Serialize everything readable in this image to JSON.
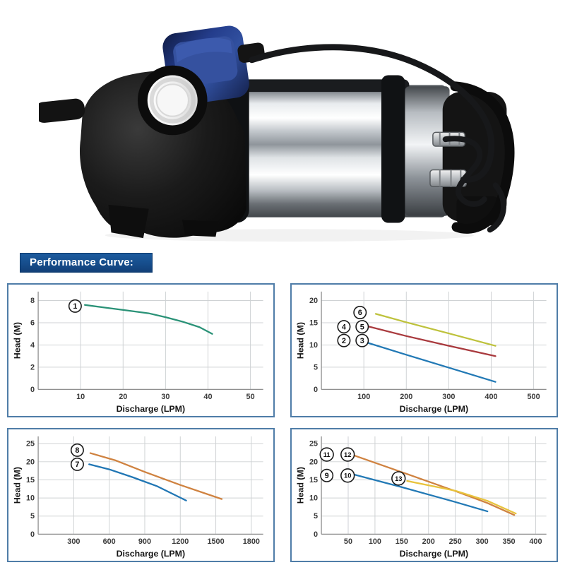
{
  "banner": {
    "label": "Performance Curve:",
    "bg_color": "#164d8c",
    "text_color": "#ffffff"
  },
  "figure": {
    "image_name": "submersible-pump-photo-with-float-switch",
    "colors": {
      "body": "#121212",
      "float": "#2b448f",
      "steel": "#c8ccd0"
    }
  },
  "chart_data": [
    {
      "type": "line",
      "id": "performance-curve-1",
      "xlabel": "Discharge (LPM)",
      "ylabel": "Head (M)",
      "xlim": [
        0,
        53
      ],
      "ylim": [
        0,
        8.8
      ],
      "xticks": [
        10,
        20,
        30,
        40,
        50
      ],
      "yticks": [
        0,
        2,
        4,
        6,
        8
      ],
      "grid": true,
      "series": [
        {
          "name": "curve-1",
          "color": "#2a9277",
          "points": [
            [
              11,
              7.6
            ],
            [
              16,
              7.35
            ],
            [
              21,
              7.1
            ],
            [
              26,
              6.85
            ],
            [
              30,
              6.5
            ],
            [
              34,
              6.1
            ],
            [
              38,
              5.6
            ],
            [
              41,
              5.0
            ]
          ]
        }
      ],
      "labels": [
        {
          "t": "1",
          "x": 8.7,
          "y": 7.5
        }
      ]
    },
    {
      "type": "line",
      "id": "performance-curve-2",
      "xlabel": "Discharge (LPM)",
      "ylabel": "Head (M)",
      "xlim": [
        0,
        530
      ],
      "ylim": [
        0,
        22
      ],
      "xticks": [
        100,
        200,
        300,
        400,
        500
      ],
      "yticks": [
        0,
        5,
        10,
        15,
        20
      ],
      "grid": true,
      "series": [
        {
          "name": "curve-6",
          "color": "#bec23c",
          "points": [
            [
              128,
              17.0
            ],
            [
              200,
              15.1
            ],
            [
              300,
              12.6
            ],
            [
              410,
              9.8
            ]
          ]
        },
        {
          "name": "curve-4-5",
          "color": "#a93a3e",
          "points": [
            [
              105,
              14.3
            ],
            [
              200,
              12.0
            ],
            [
              300,
              9.8
            ],
            [
              410,
              7.5
            ]
          ]
        },
        {
          "name": "curve-2-3",
          "color": "#2279b5",
          "points": [
            [
              105,
              10.6
            ],
            [
              200,
              7.8
            ],
            [
              300,
              4.9
            ],
            [
              410,
              1.7
            ]
          ]
        }
      ],
      "labels": [
        {
          "t": "6",
          "x": 91,
          "y": 17.3
        },
        {
          "t": "4",
          "x": 53,
          "y": 14.1
        },
        {
          "t": "5",
          "x": 96,
          "y": 14.1
        },
        {
          "t": "2",
          "x": 53,
          "y": 11.0
        },
        {
          "t": "3",
          "x": 96,
          "y": 11.0
        }
      ]
    },
    {
      "type": "line",
      "id": "performance-curve-3",
      "xlabel": "Discharge (LPM)",
      "ylabel": "Head (M)",
      "xlim": [
        0,
        1900
      ],
      "ylim": [
        0,
        27
      ],
      "xticks": [
        300,
        600,
        900,
        1200,
        1500,
        1800
      ],
      "yticks": [
        0,
        5,
        10,
        15,
        20,
        25
      ],
      "grid": true,
      "series": [
        {
          "name": "curve-8",
          "color": "#cf8240",
          "points": [
            [
              440,
              22.4
            ],
            [
              650,
              20.4
            ],
            [
              900,
              17.2
            ],
            [
              1200,
              13.6
            ],
            [
              1550,
              9.7
            ]
          ]
        },
        {
          "name": "curve-7",
          "color": "#2076b4",
          "points": [
            [
              430,
              19.3
            ],
            [
              600,
              17.9
            ],
            [
              800,
              15.7
            ],
            [
              1000,
              13.3
            ],
            [
              1250,
              9.3
            ]
          ]
        }
      ],
      "labels": [
        {
          "t": "8",
          "x": 330,
          "y": 23.2
        },
        {
          "t": "7",
          "x": 330,
          "y": 19.3
        }
      ]
    },
    {
      "type": "line",
      "id": "performance-curve-4",
      "xlabel": "Discharge (LPM)",
      "ylabel": "Head (M)",
      "xlim": [
        0,
        420
      ],
      "ylim": [
        0,
        27
      ],
      "xticks": [
        50,
        100,
        150,
        200,
        250,
        300,
        350,
        400
      ],
      "yticks": [
        0,
        5,
        10,
        15,
        20,
        25
      ],
      "grid": true,
      "series": [
        {
          "name": "curve-11-12",
          "color": "#cf8240",
          "points": [
            [
              60,
              21.8
            ],
            [
              160,
              16.6
            ],
            [
              250,
              11.9
            ],
            [
              310,
              8.6
            ],
            [
              360,
              5.3
            ]
          ]
        },
        {
          "name": "curve-9-10",
          "color": "#2279b5",
          "points": [
            [
              55,
              16.7
            ],
            [
              150,
              13.0
            ],
            [
              250,
              8.9
            ],
            [
              310,
              6.3
            ]
          ]
        },
        {
          "name": "curve-13",
          "color": "#e8c33c",
          "points": [
            [
              160,
              14.7
            ],
            [
              250,
              12.0
            ],
            [
              310,
              9.2
            ],
            [
              363,
              5.7
            ]
          ]
        }
      ],
      "labels": [
        {
          "t": "11",
          "x": 10,
          "y": 22.0
        },
        {
          "t": "12",
          "x": 49,
          "y": 22.0
        },
        {
          "t": "9",
          "x": 10,
          "y": 16.2
        },
        {
          "t": "10",
          "x": 49,
          "y": 16.2
        },
        {
          "t": "13",
          "x": 144,
          "y": 15.4
        }
      ]
    }
  ]
}
